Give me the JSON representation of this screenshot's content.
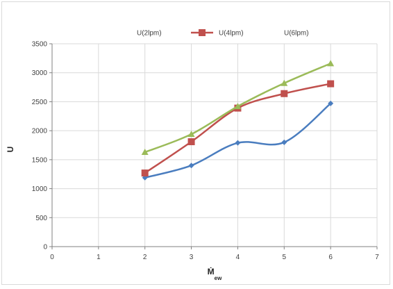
{
  "chart_data": {
    "type": "line",
    "title": "",
    "xlabel": "Ṁ",
    "xlabel_subscript": "ew",
    "ylabel": "U",
    "xlim": [
      0,
      7
    ],
    "ylim": [
      0,
      3500
    ],
    "x_ticks": [
      0,
      1,
      2,
      3,
      4,
      5,
      6,
      7
    ],
    "y_ticks": [
      0,
      500,
      1000,
      1500,
      2000,
      2500,
      3000,
      3500
    ],
    "grid": true,
    "legend_position": "top",
    "x": [
      2,
      3,
      4,
      5,
      6
    ],
    "series": [
      {
        "name": "U(2lpm)",
        "color": "#4a7dbf",
        "marker": "diamond",
        "values": [
          1190,
          1400,
          1790,
          1800,
          2470
        ]
      },
      {
        "name": "U(4lpm)",
        "color": "#c0504d",
        "marker": "square",
        "values": [
          1270,
          1810,
          2390,
          2640,
          2810
        ]
      },
      {
        "name": "U(6lpm)",
        "color": "#9bbb59",
        "marker": "triangle",
        "values": [
          1630,
          1940,
          2420,
          2820,
          3160
        ]
      }
    ]
  }
}
